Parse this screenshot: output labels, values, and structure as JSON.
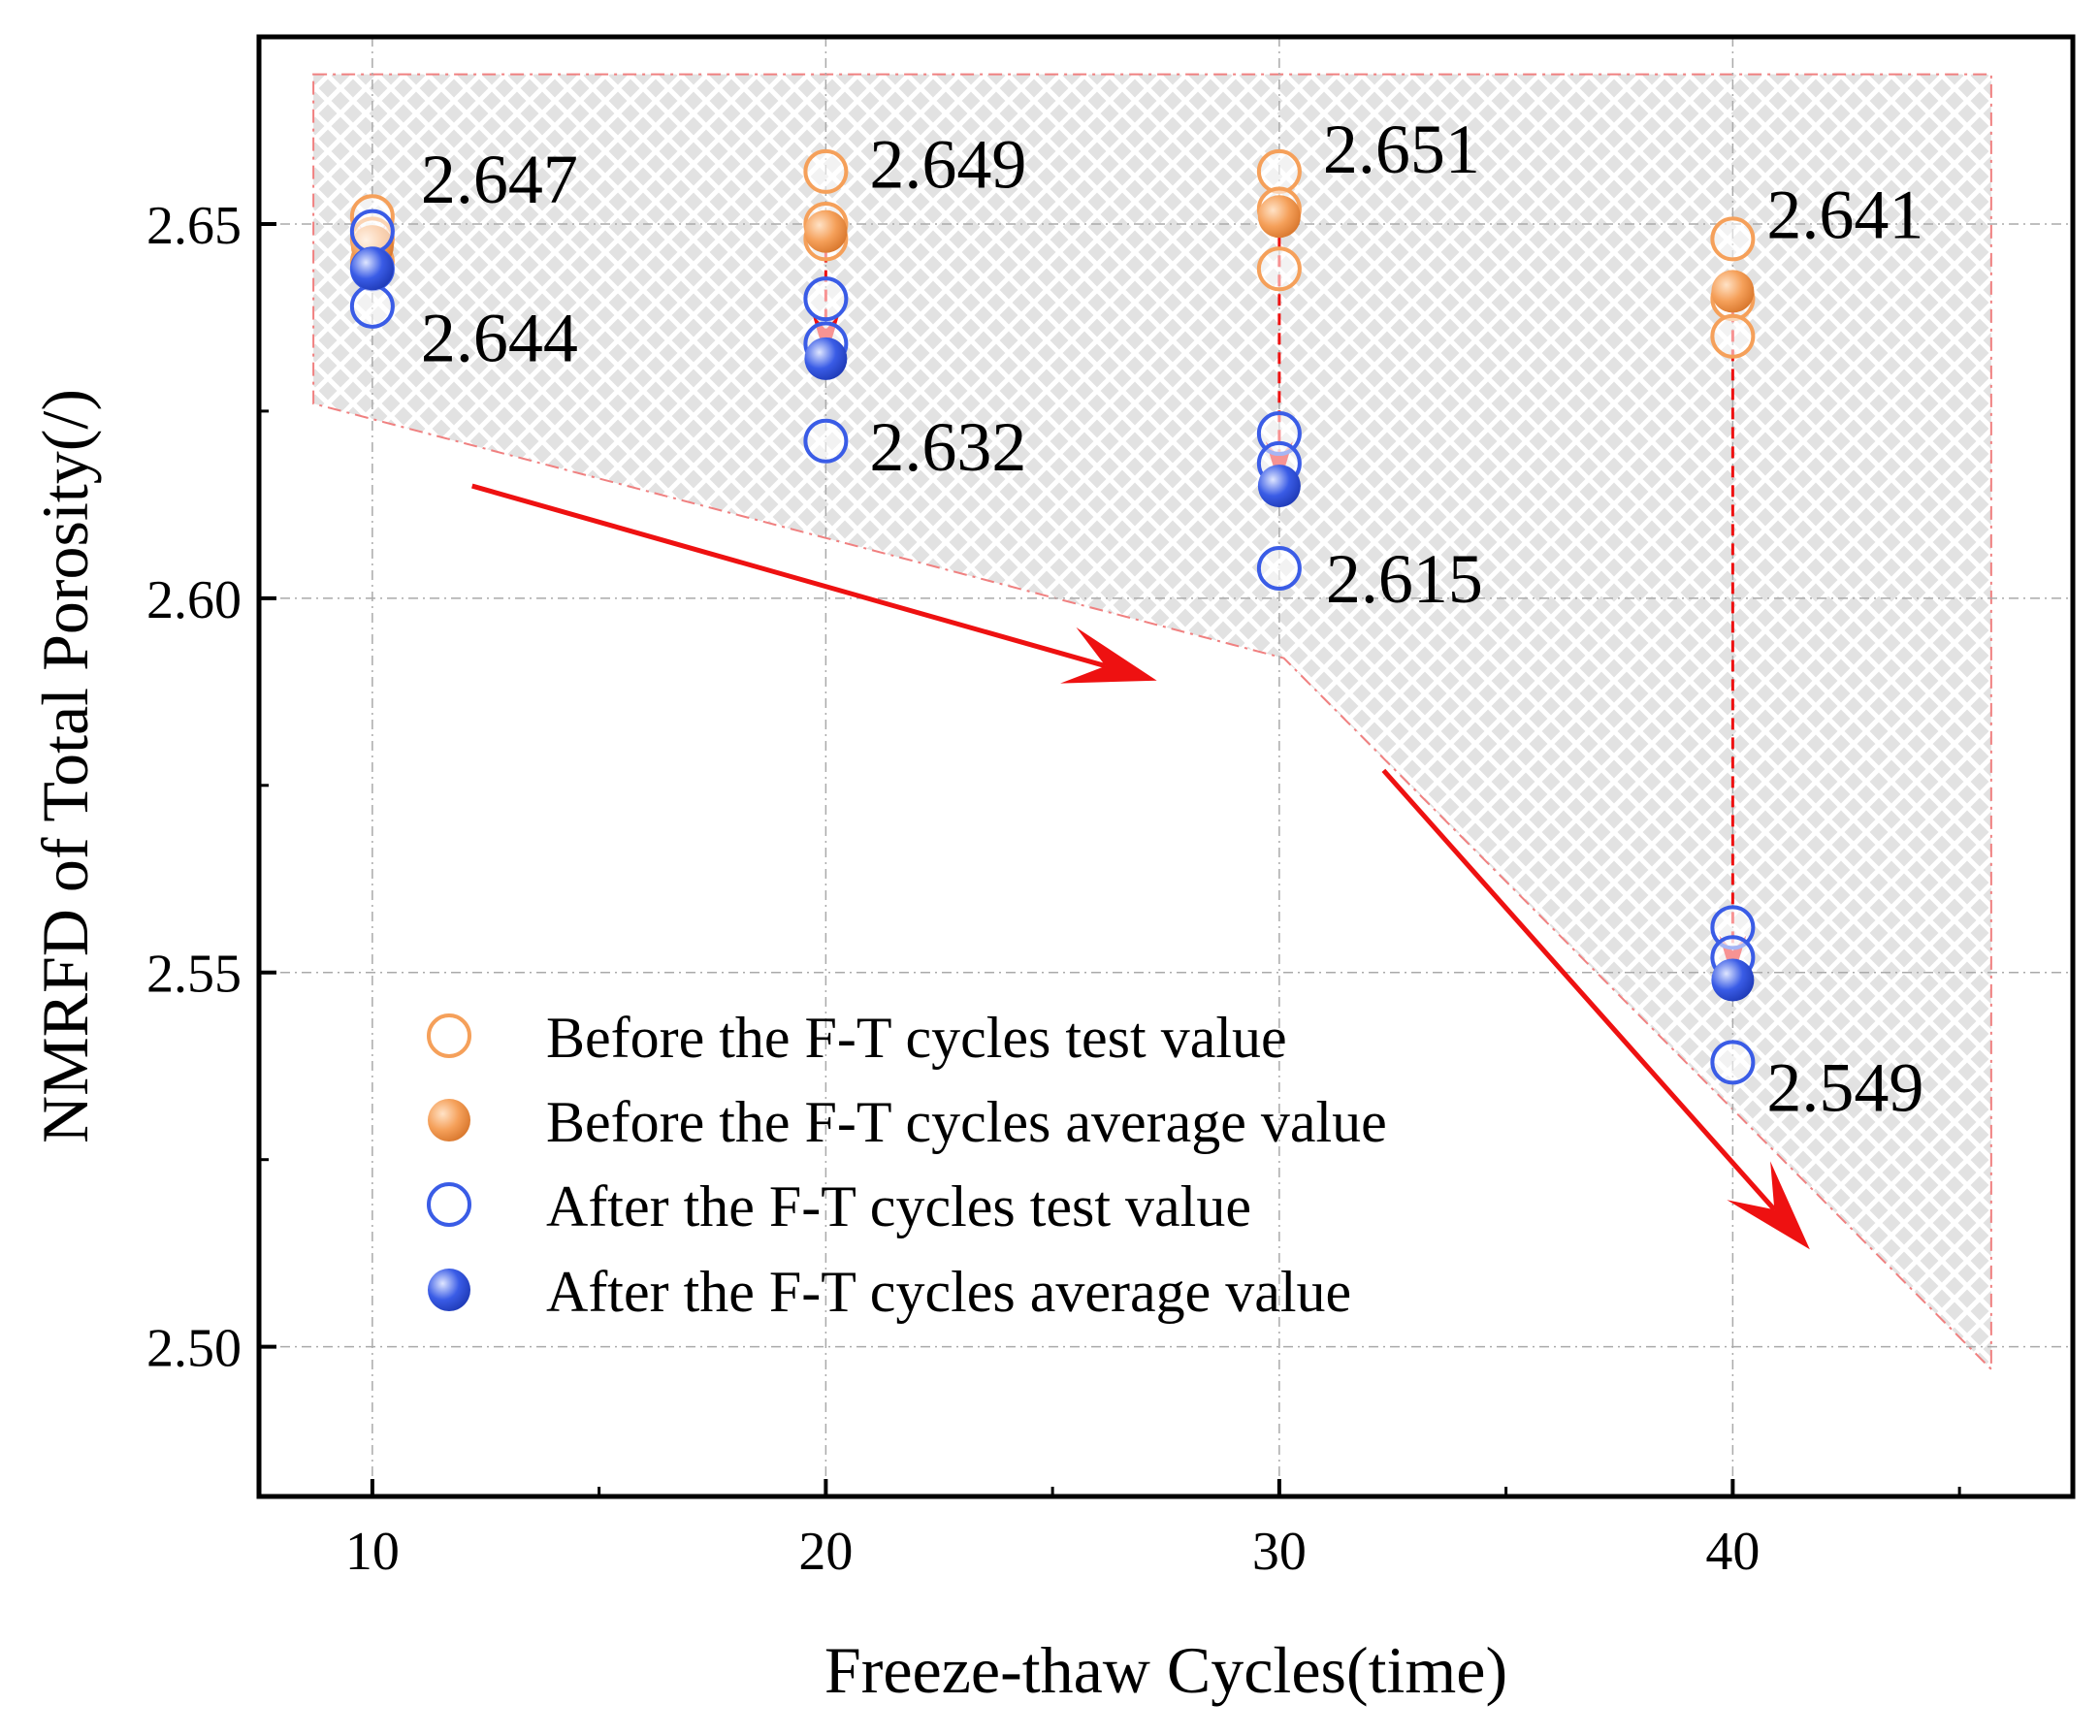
{
  "chart_data": {
    "type": "scatter",
    "title": "",
    "xlabel": "Freeze-thaw Cycles(time)",
    "ylabel": "NMRFD of Total Porosity(/)",
    "xlim": [
      7.5,
      47.5
    ],
    "ylim": [
      2.48,
      2.675
    ],
    "x_ticks": [
      10,
      20,
      30,
      40
    ],
    "x_tick_labels": [
      "10",
      "20",
      "30",
      "40"
    ],
    "y_ticks": [
      2.5,
      2.55,
      2.6,
      2.65
    ],
    "y_tick_labels": [
      "2.50",
      "2.55",
      "2.60",
      "2.65"
    ],
    "grid": true,
    "legend_position": "bottom-left",
    "colors": {
      "before": "#f5a05a",
      "after": "#3a5ce6",
      "arrow": "#ee1111",
      "band_fill": "#dcdcdc",
      "band_edge": "#f08080"
    },
    "series": [
      {
        "name": "Before the F-T cycles test value",
        "marker": "open-circle",
        "color": "#f5a05a",
        "points": [
          {
            "x": 10,
            "y": 2.651
          },
          {
            "x": 10,
            "y": 2.648
          },
          {
            "x": 10,
            "y": 2.645
          },
          {
            "x": 20,
            "y": 2.657
          },
          {
            "x": 20,
            "y": 2.65
          },
          {
            "x": 20,
            "y": 2.648
          },
          {
            "x": 30,
            "y": 2.657
          },
          {
            "x": 30,
            "y": 2.652
          },
          {
            "x": 30,
            "y": 2.644
          },
          {
            "x": 40,
            "y": 2.648
          },
          {
            "x": 40,
            "y": 2.64
          },
          {
            "x": 40,
            "y": 2.635
          }
        ]
      },
      {
        "name": "Before the F-T cycles average value",
        "marker": "filled-circle",
        "color": "#f5a05a",
        "points": [
          {
            "x": 10,
            "y": 2.647
          },
          {
            "x": 20,
            "y": 2.649
          },
          {
            "x": 30,
            "y": 2.651
          },
          {
            "x": 40,
            "y": 2.641
          }
        ]
      },
      {
        "name": "After the F-T cycles test value",
        "marker": "open-circle",
        "color": "#3a5ce6",
        "points": [
          {
            "x": 10,
            "y": 2.649
          },
          {
            "x": 10,
            "y": 2.644
          },
          {
            "x": 10,
            "y": 2.639
          },
          {
            "x": 20,
            "y": 2.64
          },
          {
            "x": 20,
            "y": 2.634
          },
          {
            "x": 20,
            "y": 2.621
          },
          {
            "x": 30,
            "y": 2.622
          },
          {
            "x": 30,
            "y": 2.618
          },
          {
            "x": 30,
            "y": 2.604
          },
          {
            "x": 40,
            "y": 2.556
          },
          {
            "x": 40,
            "y": 2.552
          },
          {
            "x": 40,
            "y": 2.538
          }
        ]
      },
      {
        "name": "After the F-T cycles average value",
        "marker": "filled-circle",
        "color": "#3a5ce6",
        "points": [
          {
            "x": 10,
            "y": 2.644
          },
          {
            "x": 20,
            "y": 2.632
          },
          {
            "x": 30,
            "y": 2.615
          },
          {
            "x": 40,
            "y": 2.549
          }
        ]
      }
    ],
    "annotations": [
      {
        "text": "2.647",
        "x": 10,
        "y": 2.647
      },
      {
        "text": "2.644",
        "x": 10,
        "y": 2.644
      },
      {
        "text": "2.649",
        "x": 20,
        "y": 2.649
      },
      {
        "text": "2.632",
        "x": 20,
        "y": 2.632
      },
      {
        "text": "2.651",
        "x": 30,
        "y": 2.651
      },
      {
        "text": "2.615",
        "x": 30,
        "y": 2.615
      },
      {
        "text": "2.641",
        "x": 40,
        "y": 2.641
      },
      {
        "text": "2.549",
        "x": 40,
        "y": 2.549
      }
    ],
    "shaded_band": {
      "upper": [
        {
          "x": 8.7,
          "y": 2.67
        },
        {
          "x": 45.7,
          "y": 2.67
        }
      ],
      "lower": [
        {
          "x": 8.7,
          "y": 2.626
        },
        {
          "x": 30.1,
          "y": 2.592
        },
        {
          "x": 45.7,
          "y": 2.497
        }
      ]
    },
    "drop_arrows": [
      {
        "x": 10,
        "from": 2.647,
        "to": 2.644
      },
      {
        "x": 20,
        "from": 2.649,
        "to": 2.632
      },
      {
        "x": 30,
        "from": 2.651,
        "to": 2.615
      },
      {
        "x": 40,
        "from": 2.641,
        "to": 2.549
      }
    ],
    "trend_arrows": [
      {
        "from": {
          "x": 12.2,
          "y": 2.615
        },
        "to": {
          "x": 27.3,
          "y": 2.589
        }
      },
      {
        "from": {
          "x": 32.3,
          "y": 2.577
        },
        "to": {
          "x": 41.7,
          "y": 2.513
        }
      }
    ]
  }
}
